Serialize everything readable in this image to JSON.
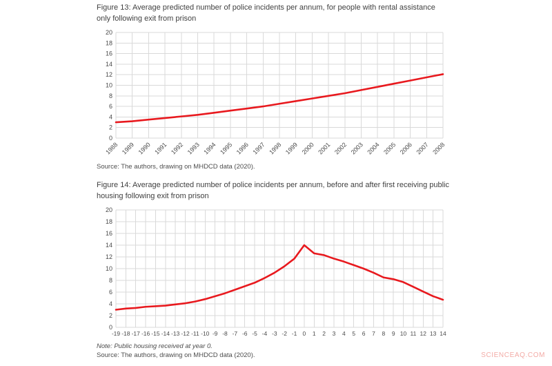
{
  "watermark": "SCIENCEAQ.COM",
  "figure13": {
    "title": "Figure 13: Average predicted number of police incidents per annum, for people with rental assistance only following exit from prison",
    "source": "Source: The authors, drawing on MHDCD data (2020)."
  },
  "figure14": {
    "title": "Figure 14: Average predicted number of police incidents per annum, before and after first receiving public housing following exit from prison",
    "note": "Note: Public housing received at year 0.",
    "source": "Source: The authors, drawing on MHDCD data (2020)."
  },
  "chart_data": [
    {
      "type": "line",
      "title": "Figure 13: Average predicted number of police incidents per annum, for people with rental assistance only following exit from prison",
      "x": [
        "1988",
        "1989",
        "1990",
        "1991",
        "1992",
        "1993",
        "1994",
        "1995",
        "1996",
        "1997",
        "1998",
        "1999",
        "2000",
        "2001",
        "2002",
        "2003",
        "2004",
        "2005",
        "2006",
        "2007",
        "2008"
      ],
      "values": [
        3.0,
        3.2,
        3.5,
        3.8,
        4.1,
        4.4,
        4.8,
        5.2,
        5.6,
        6.0,
        6.5,
        7.0,
        7.5,
        8.0,
        8.5,
        9.1,
        9.7,
        10.3,
        10.9,
        11.5,
        12.1
      ],
      "xlabel": "",
      "ylabel": "",
      "ylim": [
        0,
        20
      ],
      "ytick_step": 2,
      "grid": true,
      "legend": "none",
      "line_color": "#e8191e"
    },
    {
      "type": "line",
      "title": "Figure 14: Average predicted number of police incidents per annum, before and after first receiving public housing following exit from prison",
      "x": [
        "-19",
        "-18",
        "-17",
        "-16",
        "-15",
        "-14",
        "-13",
        "-12",
        "-11",
        "-10",
        "-9",
        "-8",
        "-7",
        "-6",
        "-5",
        "-4",
        "-3",
        "-2",
        "-1",
        "0",
        "1",
        "2",
        "3",
        "4",
        "5",
        "6",
        "7",
        "8",
        "9",
        "10",
        "11",
        "12",
        "13",
        "14"
      ],
      "values": [
        3.0,
        3.2,
        3.3,
        3.5,
        3.6,
        3.7,
        3.9,
        4.1,
        4.4,
        4.8,
        5.3,
        5.8,
        6.4,
        7.0,
        7.6,
        8.4,
        9.3,
        10.4,
        11.7,
        14.0,
        12.6,
        12.3,
        11.7,
        11.2,
        10.6,
        10.0,
        9.3,
        8.5,
        8.2,
        7.7,
        6.9,
        6.1,
        5.3,
        4.7
      ],
      "xlabel": "",
      "ylabel": "",
      "ylim": [
        0,
        20
      ],
      "ytick_step": 2,
      "grid": true,
      "legend": "none",
      "line_color": "#e8191e"
    }
  ]
}
